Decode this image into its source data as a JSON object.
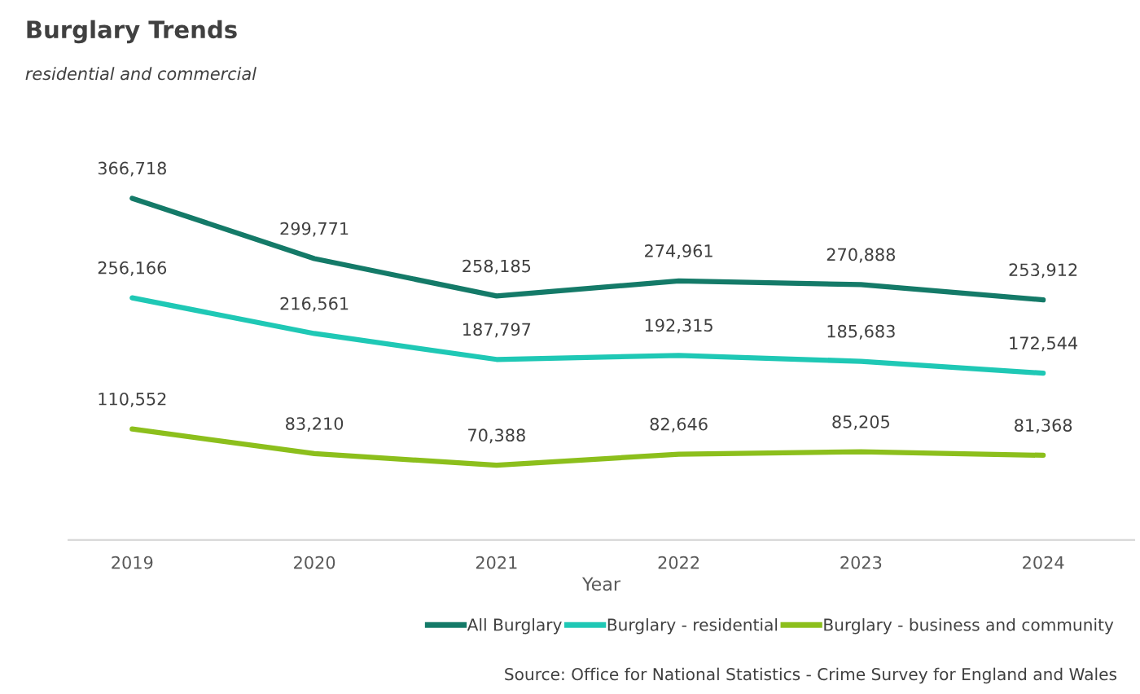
{
  "chart_data": {
    "type": "line",
    "title": "Burglary Trends",
    "subtitle": "residential and commercial",
    "xlabel": "Year",
    "categories": [
      "2019",
      "2020",
      "2021",
      "2022",
      "2023",
      "2024"
    ],
    "series": [
      {
        "name": "All Burglary",
        "color": "#147a68",
        "values": [
          366718,
          299771,
          258185,
          274961,
          270888,
          253912
        ],
        "value_labels": [
          "366,718",
          "299,771",
          "258,185",
          "274,961",
          "270,888",
          "253,912"
        ]
      },
      {
        "name": "Burglary - residential",
        "color": "#1fc8b5",
        "values": [
          256166,
          216561,
          187797,
          192315,
          185683,
          172544
        ],
        "value_labels": [
          "256,166",
          "216,561",
          "187,797",
          "192,315",
          "185,683",
          "172,544"
        ]
      },
      {
        "name": "Burglary - business and community",
        "color": "#8cbf1c",
        "values": [
          110552,
          83210,
          70388,
          82646,
          85205,
          81368
        ],
        "value_labels": [
          "110,552",
          "83,210",
          "70,388",
          "82,646",
          "85,205",
          "81,368"
        ]
      }
    ],
    "tick_labels": "x",
    "grid": false,
    "legend": "bottom right",
    "marker": "none",
    "line_style": "solid",
    "annotations": [
      "Source: Office for National Statistics - Crime Survey for England and Wales"
    ]
  }
}
